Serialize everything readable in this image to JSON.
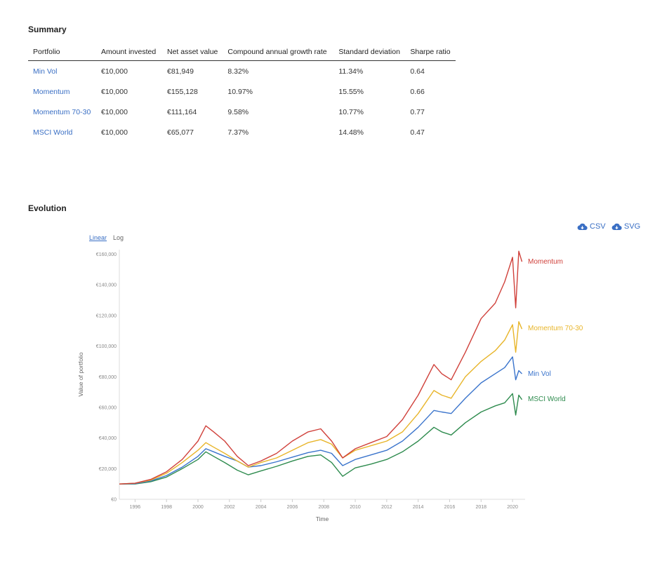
{
  "summary": {
    "title": "Summary",
    "headers": [
      "Portfolio",
      "Amount invested",
      "Net asset value",
      "Compound annual growth rate",
      "Standard deviation",
      "Sharpe ratio"
    ],
    "rows": [
      [
        "Min Vol",
        "€10,000",
        "€81,949",
        "8.32%",
        "11.34%",
        "0.64"
      ],
      [
        "Momentum",
        "€10,000",
        "€155,128",
        "10.97%",
        "15.55%",
        "0.66"
      ],
      [
        "Momentum 70-30",
        "€10,000",
        "€111,164",
        "9.58%",
        "10.77%",
        "0.77"
      ],
      [
        "MSCI World",
        "€10,000",
        "€65,077",
        "7.37%",
        "14.48%",
        "0.47"
      ]
    ]
  },
  "evolution": {
    "title": "Evolution",
    "downloads": {
      "csv": "CSV",
      "svg": "SVG"
    },
    "scale_toggle": {
      "linear": "Linear",
      "log": "Log",
      "selected": "Linear"
    }
  },
  "chart_data": {
    "type": "line",
    "xlabel": "Time",
    "ylabel": "Value of portfolio",
    "x_ticks": [
      "1996",
      "1998",
      "2000",
      "2002",
      "2004",
      "2006",
      "2008",
      "2010",
      "2012",
      "2014",
      "2016",
      "2018",
      "2020"
    ],
    "y_ticks": [
      "€0",
      "€20,000",
      "€40,000",
      "€60,000",
      "€80,000",
      "€100,000",
      "€120,000",
      "€140,000",
      "€160,000"
    ],
    "xlim": [
      1995.0,
      2020.8
    ],
    "ylim": [
      0,
      163000
    ],
    "x": [
      1995.0,
      1996.0,
      1997.0,
      1998.0,
      1999.0,
      2000.0,
      2000.5,
      2001.0,
      2001.7,
      2002.5,
      2003.2,
      2004.0,
      2005.0,
      2006.0,
      2007.0,
      2007.8,
      2008.5,
      2009.2,
      2010.0,
      2011.0,
      2012.0,
      2013.0,
      2014.0,
      2015.0,
      2015.5,
      2016.1,
      2017.0,
      2018.0,
      2018.9,
      2019.5,
      2020.0,
      2020.2,
      2020.4,
      2020.6
    ],
    "series": [
      {
        "name": "Momentum",
        "color": "#d0413b",
        "values": [
          10000,
          10500,
          13000,
          18000,
          26000,
          38000,
          48000,
          44000,
          38000,
          28000,
          22000,
          25000,
          30000,
          38000,
          44000,
          46000,
          38000,
          27000,
          33000,
          37000,
          41000,
          52000,
          68000,
          88000,
          82000,
          78000,
          96000,
          118000,
          128000,
          142000,
          158000,
          125000,
          162000,
          155128
        ]
      },
      {
        "name": "Momentum 70-30",
        "color": "#e8b52a",
        "values": [
          10000,
          10500,
          12500,
          17000,
          24000,
          32000,
          37000,
          34000,
          30000,
          25000,
          21000,
          24000,
          27000,
          32000,
          37000,
          39000,
          36000,
          27000,
          32000,
          35000,
          38000,
          44000,
          56000,
          71000,
          68000,
          66000,
          80000,
          90000,
          97000,
          104000,
          114000,
          96000,
          116000,
          111164
        ]
      },
      {
        "name": "Min Vol",
        "color": "#3a74cc",
        "values": [
          10000,
          10200,
          12000,
          15500,
          21000,
          28000,
          33000,
          31000,
          28000,
          25000,
          21000,
          22000,
          24500,
          27500,
          30500,
          32000,
          30000,
          22000,
          26000,
          29000,
          32000,
          38000,
          47000,
          58000,
          57000,
          56000,
          66000,
          76000,
          82000,
          86000,
          93000,
          78000,
          84000,
          81949
        ]
      },
      {
        "name": "MSCI World",
        "color": "#2e8b4e",
        "values": [
          10000,
          10000,
          11500,
          14500,
          20000,
          26000,
          31000,
          28000,
          24000,
          19000,
          16000,
          18500,
          21500,
          25000,
          28000,
          29000,
          24000,
          15000,
          20500,
          23000,
          26000,
          31000,
          38000,
          47000,
          44000,
          42000,
          50000,
          57000,
          61000,
          63000,
          69000,
          55000,
          68000,
          65077
        ]
      }
    ],
    "labels_at_end": true,
    "grid": false,
    "legend": "none"
  }
}
